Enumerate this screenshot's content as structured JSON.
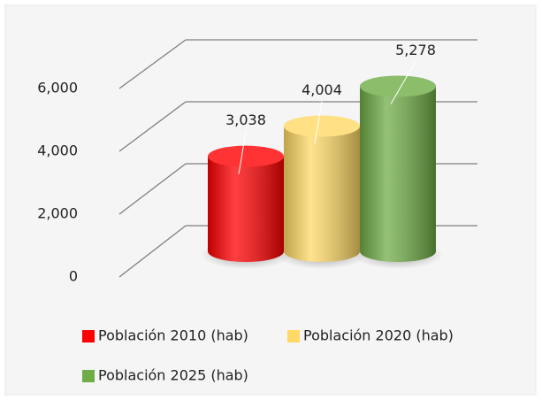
{
  "chart_data": {
    "type": "bar3d",
    "series": [
      {
        "name": "Población 2010 (hab)",
        "color": "#ff0000",
        "values": [
          3038
        ],
        "value_labels": [
          "3,038"
        ]
      },
      {
        "name": "Población 2020 (hab)",
        "color": "#ffd966",
        "values": [
          4004
        ],
        "value_labels": [
          "4,004"
        ]
      },
      {
        "name": "Población 2025 (hab)",
        "color": "#70ad47",
        "values": [
          5278
        ],
        "value_labels": [
          "5,278"
        ]
      }
    ],
    "ylim": [
      0,
      6000
    ],
    "yticks": [
      {
        "value": 0,
        "label": "0"
      },
      {
        "value": 2000,
        "label": "2,000"
      },
      {
        "value": 4000,
        "label": "4,000"
      },
      {
        "value": 6000,
        "label": "6,000"
      }
    ],
    "grid": true
  }
}
